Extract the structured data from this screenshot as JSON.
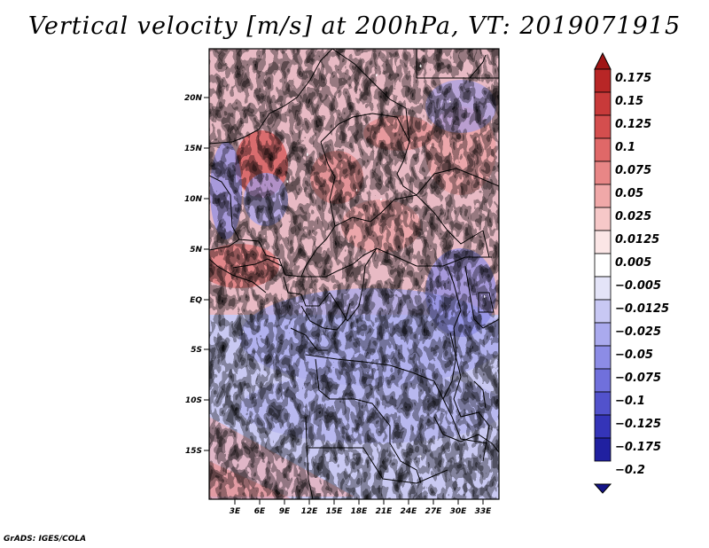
{
  "title": "Vertical velocity [m/s] at 200hPa, VT: 2019071915",
  "footer": "GrADS: IGES/COLA",
  "map": {
    "lat_labels": [
      "20N",
      "15N",
      "10N",
      "5N",
      "EQ",
      "5S",
      "10S",
      "15S"
    ],
    "lat_values": [
      20,
      15,
      10,
      5,
      0,
      -5,
      -10,
      -15
    ],
    "lon_labels": [
      "3E",
      "6E",
      "9E",
      "12E",
      "15E",
      "18E",
      "21E",
      "24E",
      "27E",
      "30E",
      "33E"
    ],
    "lon_values": [
      3,
      6,
      9,
      12,
      15,
      18,
      21,
      24,
      27,
      30,
      33
    ]
  },
  "colorbar": {
    "labels": [
      "0.175",
      "0.15",
      "0.125",
      "0.1",
      "0.075",
      "0.05",
      "0.025",
      "0.0125",
      "0.005",
      "−0.005",
      "−0.0125",
      "−0.025",
      "−0.05",
      "−0.075",
      "−0.1",
      "−0.125",
      "−0.175",
      "−0.2"
    ],
    "colors": [
      "#a01616",
      "#b82626",
      "#c83a3a",
      "#d44e4e",
      "#e06868",
      "#e88686",
      "#f0a8a8",
      "#f6c8c8",
      "#fbe6e6",
      "#ffffff",
      "#e4e4f8",
      "#c8c8f4",
      "#aaaaee",
      "#8c8ce6",
      "#7070dc",
      "#5252cc",
      "#3434b8",
      "#2020a0",
      "#141488"
    ]
  }
}
